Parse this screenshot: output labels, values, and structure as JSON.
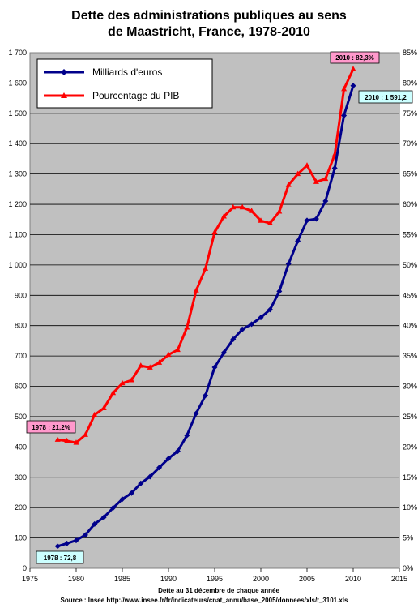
{
  "chart_data": {
    "type": "line",
    "title_line1": "Dette des administrations publiques au sens",
    "title_line2": "de Maastricht, France, 1978-2010",
    "xlabel": "Dette au 31 décembre de chaque année",
    "source": "Source : Insee http://www.insee.fr/fr/indicateurs/cnat_annu/base_2005/donnees/xls/t_3101.xls",
    "xlim": [
      1975,
      2015
    ],
    "x_ticks": [
      1975,
      1980,
      1985,
      1990,
      1995,
      2000,
      2005,
      2010,
      2015
    ],
    "ylim_left": [
      0,
      1700
    ],
    "y_left_ticks": [
      "0",
      "100",
      "200",
      "300",
      "400",
      "500",
      "600",
      "700",
      "800",
      "900",
      "1 000",
      "1 100",
      "1 200",
      "1 300",
      "1 400",
      "1 500",
      "1 600",
      "1 700"
    ],
    "ylim_right": [
      0,
      85
    ],
    "y_right_ticks": [
      "0%",
      "5%",
      "10%",
      "15%",
      "20%",
      "25%",
      "30%",
      "35%",
      "40%",
      "45%",
      "50%",
      "55%",
      "60%",
      "65%",
      "70%",
      "75%",
      "80%",
      "85%"
    ],
    "grid": true,
    "legend_placement": "top-left",
    "x": [
      1978,
      1979,
      1980,
      1981,
      1982,
      1983,
      1984,
      1985,
      1986,
      1987,
      1988,
      1989,
      1990,
      1991,
      1992,
      1993,
      1994,
      1995,
      1996,
      1997,
      1998,
      1999,
      2000,
      2001,
      2002,
      2003,
      2004,
      2005,
      2006,
      2007,
      2008,
      2009,
      2010
    ],
    "series": [
      {
        "name": "Milliards d'euros",
        "axis": "left",
        "color": "#00008b",
        "values": [
          72.8,
          82,
          92,
          110,
          146,
          168,
          199,
          228,
          248,
          280,
          302,
          332,
          362,
          386,
          438,
          511,
          570,
          663,
          711,
          755,
          788,
          805,
          827,
          853,
          913,
          1004,
          1079,
          1147,
          1152,
          1211,
          1319,
          1493,
          1591.2
        ]
      },
      {
        "name": "Pourcentage du PIB",
        "axis": "right",
        "color": "#ff0000",
        "values": [
          21.2,
          21.0,
          20.7,
          22.0,
          25.3,
          26.4,
          28.9,
          30.5,
          31.0,
          33.4,
          33.1,
          33.9,
          35.2,
          36.0,
          39.7,
          45.8,
          49.4,
          55.4,
          58.0,
          59.5,
          59.5,
          58.9,
          57.3,
          56.9,
          58.8,
          63.2,
          65.0,
          66.4,
          63.7,
          64.2,
          68.2,
          79.0,
          82.3
        ]
      }
    ],
    "annotations": {
      "first_pct": "1978 : 21,2%",
      "last_pct": "2010 : 82,3%",
      "first_eur": "1978 : 72,8",
      "last_eur": "2010 : 1 591,2"
    },
    "colors": {
      "plot_bg": "#c0c0c0",
      "grid": "#000000",
      "pink_label": "#ff99cc",
      "cyan_label": "#ccffff"
    }
  }
}
